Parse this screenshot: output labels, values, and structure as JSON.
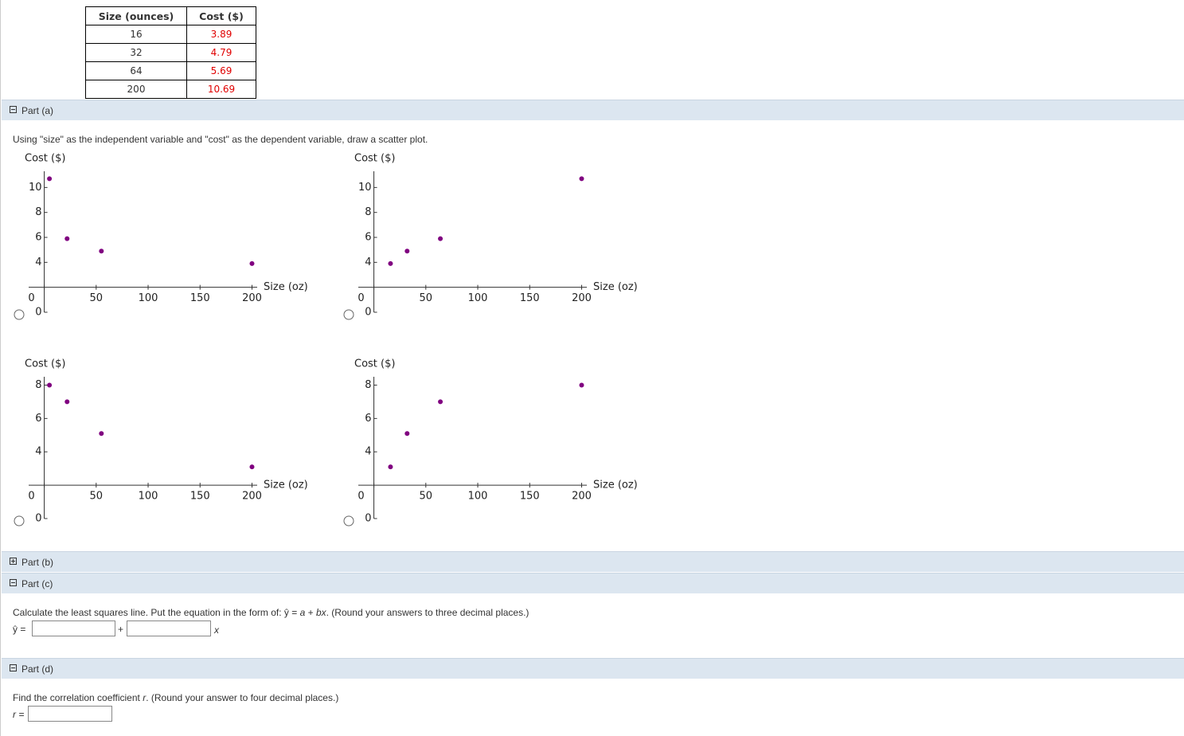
{
  "table": {
    "header": [
      "Size (ounces)",
      "Cost ($)"
    ],
    "rows": [
      [
        "16",
        "3.89"
      ],
      [
        "32",
        "4.79"
      ],
      [
        "64",
        "5.69"
      ],
      [
        "200",
        "10.69"
      ]
    ]
  },
  "sections": [
    {
      "label": "Part (a)",
      "prompt": "Using \"size\" as the independent variable and \"cost\" as the dependent variable, draw a scatter plot."
    },
    {
      "label": "Part (b)"
    },
    {
      "label": "Part (c)",
      "prompt": [
        "Calculate the least squares line. Put the equation in the form of:  ",
        "ŷ = ",
        "a",
        " + ",
        "bx",
        ".  (Round your answers to three decimal places.)"
      ],
      "inputs": [
        "ŷ =",
        "+",
        "x"
      ]
    },
    {
      "label": "Part (d)",
      "prompt": [
        "Find the correlation coefficient ",
        "r",
        ". (Round your answer to four decimal places.)"
      ],
      "inputs": [
        "r ="
      ]
    }
  ],
  "chart_data": [
    {
      "type": "scatter",
      "ylabel": "Cost ($)",
      "xlabel": "Size (oz)",
      "x": [
        5,
        22,
        55,
        200
      ],
      "y": [
        10.7,
        5.9,
        4.9,
        3.9
      ],
      "color": "#800080",
      "xlim": [
        -15,
        205
      ],
      "ylim": [
        0,
        11.3
      ],
      "xticks": [
        0,
        50,
        100,
        150,
        200
      ],
      "yticks": [
        0,
        4,
        6,
        8,
        10
      ],
      "x_axis_at": 2
    },
    {
      "type": "scatter",
      "ylabel": "Cost ($)",
      "xlabel": "Size (oz)",
      "x": [
        16,
        32,
        64,
        200
      ],
      "y": [
        3.9,
        4.9,
        5.9,
        10.7
      ],
      "color": "#800080",
      "xlim": [
        -15,
        205
      ],
      "ylim": [
        0,
        11.3
      ],
      "xticks": [
        0,
        50,
        100,
        150,
        200
      ],
      "yticks": [
        0,
        4,
        6,
        8,
        10
      ],
      "x_axis_at": 2
    },
    {
      "type": "scatter",
      "ylabel": "Cost ($)",
      "xlabel": "Size (oz)",
      "x": [
        5,
        22,
        55,
        200
      ],
      "y": [
        8,
        7,
        5.1,
        3.1
      ],
      "color": "#800080",
      "xlim": [
        -15,
        205
      ],
      "ylim": [
        0,
        8.5
      ],
      "xticks": [
        0,
        50,
        100,
        150,
        200
      ],
      "yticks": [
        0,
        4,
        6,
        8
      ],
      "x_axis_at": 2
    },
    {
      "type": "scatter",
      "ylabel": "Cost ($)",
      "xlabel": "Size (oz)",
      "x": [
        16,
        32,
        64,
        200
      ],
      "y": [
        3.1,
        5.1,
        7,
        8
      ],
      "color": "#800080",
      "xlim": [
        -15,
        205
      ],
      "ylim": [
        0,
        8.5
      ],
      "xticks": [
        0,
        50,
        100,
        150,
        200
      ],
      "yticks": [
        0,
        4,
        6,
        8
      ],
      "x_axis_at": 2
    }
  ]
}
